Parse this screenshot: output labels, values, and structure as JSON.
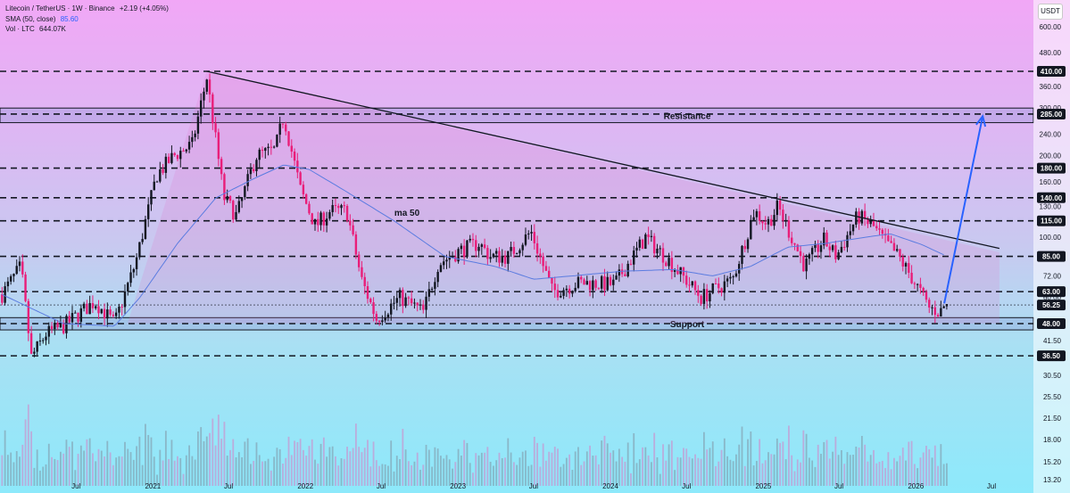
{
  "header": {
    "title": "Litecoin / TetherUS · 1W · Binance",
    "change": "+2.19 (+4.05%)",
    "sma_label": "SMA (50, close)",
    "sma_value": "85.60",
    "vol_label": "Vol · LTC",
    "vol_value": "644.07K",
    "currency": "USDT"
  },
  "colors": {
    "up": "#131722",
    "down": "#e91e79",
    "sma": "#5b7ce0",
    "trendline": "#131722",
    "arrow": "#2962ff",
    "level_label_bg": "#131722"
  },
  "chart_data": {
    "type": "candlestick",
    "symbol": "LTCUSDT",
    "interval": "1W",
    "scale": "log",
    "y_ticks": [
      600,
      480,
      360,
      300,
      240,
      200,
      160,
      130,
      100,
      72,
      60,
      41.5,
      30.5,
      25.5,
      21.5,
      18,
      15.2,
      13.2
    ],
    "x_ticks": [
      {
        "label": "Jul",
        "date": "2020-07-01"
      },
      {
        "label": "2021",
        "date": "2021-01-01"
      },
      {
        "label": "Jul",
        "date": "2021-07-01"
      },
      {
        "label": "2022",
        "date": "2022-01-01"
      },
      {
        "label": "Jul",
        "date": "2022-07-01"
      },
      {
        "label": "2023",
        "date": "2023-01-01"
      },
      {
        "label": "Jul",
        "date": "2023-07-01"
      },
      {
        "label": "2024",
        "date": "2024-01-01"
      },
      {
        "label": "Jul",
        "date": "2024-07-01"
      },
      {
        "label": "2025",
        "date": "2025-01-01"
      },
      {
        "label": "Jul",
        "date": "2025-07-01"
      },
      {
        "label": "2026",
        "date": "2026-01-01"
      },
      {
        "label": "Jul",
        "date": "2026-07-01"
      }
    ],
    "levels": [
      {
        "label": "410.00",
        "value": 410
      },
      {
        "label": "285.00",
        "value": 285
      },
      {
        "label": "180.00",
        "value": 180
      },
      {
        "label": "140.00",
        "value": 140
      },
      {
        "label": "115.00",
        "value": 115
      },
      {
        "label": "85.00",
        "value": 85
      },
      {
        "label": "63.00",
        "value": 63
      },
      {
        "label": "56.25",
        "value": 56.25
      },
      {
        "label": "48.00",
        "value": 48
      },
      {
        "label": "36.50",
        "value": 36.5
      }
    ],
    "zones": [
      {
        "label": "Resistance",
        "low": 265,
        "high": 300
      },
      {
        "label": "Support",
        "low": 45.5,
        "high": 50.5
      }
    ],
    "annotations": [
      {
        "text": "ma 50",
        "date": "2022-09-01",
        "value": 120
      }
    ],
    "trendline": [
      {
        "date": "2021-05-10",
        "value": 410
      },
      {
        "date": "2026-07-20",
        "value": 91
      }
    ],
    "projection_arrow": [
      {
        "date": "2026-03-10",
        "value": 57
      },
      {
        "date": "2026-06-10",
        "value": 280
      }
    ],
    "price_anchors": [
      [
        "2020-01-01",
        60
      ],
      [
        "2020-02-20",
        78
      ],
      [
        "2020-03-16",
        36
      ],
      [
        "2020-04-20",
        44
      ],
      [
        "2020-06-01",
        47
      ],
      [
        "2020-08-15",
        58
      ],
      [
        "2020-10-01",
        48
      ],
      [
        "2020-11-20",
        80
      ],
      [
        "2021-01-10",
        170
      ],
      [
        "2021-02-20",
        200
      ],
      [
        "2021-04-05",
        220
      ],
      [
        "2021-05-10",
        390
      ],
      [
        "2021-06-20",
        140
      ],
      [
        "2021-07-20",
        120
      ],
      [
        "2021-09-05",
        200
      ],
      [
        "2021-10-20",
        210
      ],
      [
        "2021-11-10",
        280
      ],
      [
        "2021-12-20",
        150
      ],
      [
        "2022-01-25",
        110
      ],
      [
        "2022-03-01",
        125
      ],
      [
        "2022-04-10",
        125
      ],
      [
        "2022-05-15",
        70
      ],
      [
        "2022-06-20",
        50
      ],
      [
        "2022-08-15",
        60
      ],
      [
        "2022-10-10",
        53
      ],
      [
        "2022-11-15",
        80
      ],
      [
        "2023-01-10",
        90
      ],
      [
        "2023-02-20",
        95
      ],
      [
        "2023-03-20",
        85
      ],
      [
        "2023-05-01",
        85
      ],
      [
        "2023-06-25",
        105
      ],
      [
        "2023-08-15",
        63
      ],
      [
        "2023-10-20",
        68
      ],
      [
        "2024-01-10",
        67
      ],
      [
        "2024-03-25",
        100
      ],
      [
        "2024-05-20",
        82
      ],
      [
        "2024-08-05",
        60
      ],
      [
        "2024-10-20",
        70
      ],
      [
        "2024-12-10",
        125
      ],
      [
        "2025-01-10",
        112
      ],
      [
        "2025-02-05",
        130
      ],
      [
        "2025-04-10",
        78
      ],
      [
        "2025-05-25",
        98
      ],
      [
        "2025-06-25",
        85
      ],
      [
        "2025-08-15",
        120
      ],
      [
        "2025-09-20",
        110
      ],
      [
        "2025-10-15",
        98
      ],
      [
        "2025-11-20",
        85
      ],
      [
        "2025-12-25",
        70
      ],
      [
        "2026-02-01",
        55
      ],
      [
        "2026-03-01",
        53
      ],
      [
        "2026-03-10",
        56
      ]
    ],
    "sma_anchors": [
      [
        "2020-01-01",
        62
      ],
      [
        "2020-06-01",
        48
      ],
      [
        "2020-10-01",
        47
      ],
      [
        "2020-12-01",
        60
      ],
      [
        "2021-03-01",
        95
      ],
      [
        "2021-06-01",
        140
      ],
      [
        "2021-09-01",
        165
      ],
      [
        "2021-11-10",
        185
      ],
      [
        "2022-01-10",
        178
      ],
      [
        "2022-04-01",
        150
      ],
      [
        "2022-08-01",
        115
      ],
      [
        "2022-12-01",
        85
      ],
      [
        "2023-04-01",
        78
      ],
      [
        "2023-07-01",
        70
      ],
      [
        "2023-10-01",
        72
      ],
      [
        "2024-02-01",
        75
      ],
      [
        "2024-06-01",
        76
      ],
      [
        "2024-09-01",
        72
      ],
      [
        "2024-12-01",
        78
      ],
      [
        "2025-03-01",
        92
      ],
      [
        "2025-06-01",
        95
      ],
      [
        "2025-09-01",
        100
      ],
      [
        "2025-11-01",
        103
      ],
      [
        "2026-01-15",
        94
      ],
      [
        "2026-03-10",
        86
      ]
    ]
  }
}
